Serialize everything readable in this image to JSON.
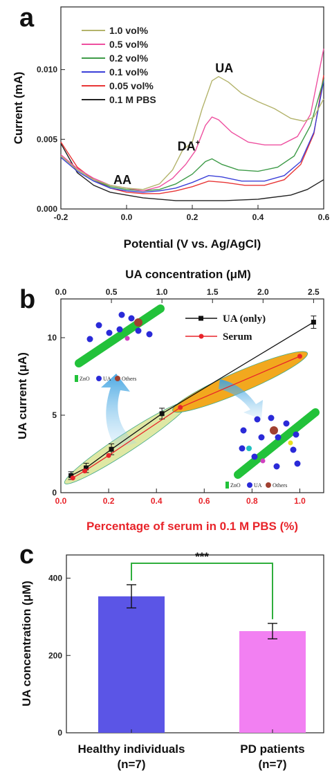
{
  "chart_data": [
    {
      "panel": "a",
      "type": "line",
      "xlabel": "Potential (V vs. Ag/AgCl)",
      "ylabel": "Current (mA)",
      "xlim": [
        -0.2,
        0.6
      ],
      "ylim": [
        0,
        0.0145
      ],
      "xticks": [
        -0.2,
        0.0,
        0.2,
        0.4,
        0.6
      ],
      "xticklabels": [
        "-0.2",
        "0.0",
        "0.2",
        "0.4",
        "0.6"
      ],
      "yticks": [
        0,
        0.005,
        0.01
      ],
      "yticklabels": [
        "0.000",
        "0.005",
        "0.010"
      ],
      "legend_position": "top-left",
      "annotations": [
        {
          "text": "AA",
          "x": -0.04,
          "y": 0.0018
        },
        {
          "text": "DA",
          "sup": "+",
          "x": 0.155,
          "y": 0.0042
        },
        {
          "text": "UA",
          "x": 0.27,
          "y": 0.0098
        }
      ],
      "series": [
        {
          "name": "1.0 vol%",
          "color": "#b3b36b",
          "points": [
            [
              -0.2,
              0.0038
            ],
            [
              -0.15,
              0.0028
            ],
            [
              -0.1,
              0.0021
            ],
            [
              -0.05,
              0.0017
            ],
            [
              0.0,
              0.0015
            ],
            [
              0.05,
              0.0014
            ],
            [
              0.1,
              0.0018
            ],
            [
              0.14,
              0.0028
            ],
            [
              0.17,
              0.0042
            ],
            [
              0.2,
              0.0048
            ],
            [
              0.23,
              0.0072
            ],
            [
              0.26,
              0.0092
            ],
            [
              0.28,
              0.0095
            ],
            [
              0.31,
              0.0091
            ],
            [
              0.35,
              0.0083
            ],
            [
              0.4,
              0.0077
            ],
            [
              0.45,
              0.0072
            ],
            [
              0.5,
              0.0065
            ],
            [
              0.54,
              0.0063
            ],
            [
              0.57,
              0.0066
            ],
            [
              0.6,
              0.0079
            ]
          ]
        },
        {
          "name": "0.5 vol%",
          "color": "#ee4f9f",
          "points": [
            [
              -0.2,
              0.0039
            ],
            [
              -0.15,
              0.0029
            ],
            [
              -0.1,
              0.0022
            ],
            [
              -0.05,
              0.0017
            ],
            [
              0.0,
              0.0015
            ],
            [
              0.05,
              0.0013
            ],
            [
              0.1,
              0.0016
            ],
            [
              0.14,
              0.0022
            ],
            [
              0.18,
              0.0032
            ],
            [
              0.21,
              0.0042
            ],
            [
              0.24,
              0.006
            ],
            [
              0.26,
              0.0066
            ],
            [
              0.28,
              0.0064
            ],
            [
              0.32,
              0.0055
            ],
            [
              0.37,
              0.0048
            ],
            [
              0.42,
              0.0046
            ],
            [
              0.47,
              0.0046
            ],
            [
              0.52,
              0.0052
            ],
            [
              0.56,
              0.0068
            ],
            [
              0.6,
              0.0115
            ]
          ]
        },
        {
          "name": "0.2 vol%",
          "color": "#3e9b48",
          "points": [
            [
              -0.2,
              0.0038
            ],
            [
              -0.15,
              0.0028
            ],
            [
              -0.1,
              0.0021
            ],
            [
              -0.05,
              0.0016
            ],
            [
              0.0,
              0.0014
            ],
            [
              0.05,
              0.0013
            ],
            [
              0.1,
              0.0014
            ],
            [
              0.15,
              0.0018
            ],
            [
              0.2,
              0.0025
            ],
            [
              0.24,
              0.0034
            ],
            [
              0.26,
              0.0036
            ],
            [
              0.29,
              0.0032
            ],
            [
              0.34,
              0.0028
            ],
            [
              0.4,
              0.0027
            ],
            [
              0.46,
              0.003
            ],
            [
              0.51,
              0.0038
            ],
            [
              0.56,
              0.006
            ],
            [
              0.6,
              0.0093
            ]
          ]
        },
        {
          "name": "0.1 vol%",
          "color": "#3a3fd8",
          "points": [
            [
              -0.2,
              0.0037
            ],
            [
              -0.15,
              0.0027
            ],
            [
              -0.1,
              0.002
            ],
            [
              -0.05,
              0.0015
            ],
            [
              0.0,
              0.0013
            ],
            [
              0.05,
              0.0012
            ],
            [
              0.1,
              0.0013
            ],
            [
              0.15,
              0.0015
            ],
            [
              0.2,
              0.0019
            ],
            [
              0.25,
              0.0024
            ],
            [
              0.29,
              0.0023
            ],
            [
              0.35,
              0.002
            ],
            [
              0.42,
              0.002
            ],
            [
              0.48,
              0.0024
            ],
            [
              0.53,
              0.0034
            ],
            [
              0.57,
              0.0055
            ],
            [
              0.6,
              0.0092
            ]
          ]
        },
        {
          "name": "0.05 vol%",
          "color": "#e83535",
          "points": [
            [
              -0.2,
              0.0048
            ],
            [
              -0.15,
              0.003
            ],
            [
              -0.1,
              0.0021
            ],
            [
              -0.05,
              0.0015
            ],
            [
              0.0,
              0.0012
            ],
            [
              0.05,
              0.0011
            ],
            [
              0.1,
              0.0011
            ],
            [
              0.15,
              0.0013
            ],
            [
              0.2,
              0.0016
            ],
            [
              0.25,
              0.002
            ],
            [
              0.3,
              0.0019
            ],
            [
              0.36,
              0.0017
            ],
            [
              0.42,
              0.0017
            ],
            [
              0.48,
              0.0021
            ],
            [
              0.53,
              0.0032
            ],
            [
              0.57,
              0.0054
            ],
            [
              0.6,
              0.0096
            ]
          ]
        },
        {
          "name": "0.1 M PBS",
          "color": "#222222",
          "points": [
            [
              -0.2,
              0.0047
            ],
            [
              -0.15,
              0.0026
            ],
            [
              -0.1,
              0.0017
            ],
            [
              -0.05,
              0.0012
            ],
            [
              0.0,
              0.001
            ],
            [
              0.05,
              0.0008
            ],
            [
              0.1,
              0.0007
            ],
            [
              0.15,
              0.0006
            ],
            [
              0.2,
              0.0006
            ],
            [
              0.3,
              0.0006
            ],
            [
              0.4,
              0.0007
            ],
            [
              0.5,
              0.001
            ],
            [
              0.55,
              0.0014
            ],
            [
              0.6,
              0.0021
            ]
          ]
        }
      ]
    },
    {
      "panel": "b",
      "type": "line",
      "xlabel": "Percentage of serum in 0.1 M PBS (%)",
      "x2label": "UA concentration (μM)",
      "ylabel": "UA current (μA)",
      "xlim": [
        0,
        1.1
      ],
      "x2lim": [
        0,
        2.6
      ],
      "ylim": [
        0,
        12.5
      ],
      "xticks": [
        0,
        0.2,
        0.4,
        0.6,
        0.8,
        1.0
      ],
      "xticklabels": [
        "0.0",
        "0.2",
        "0.4",
        "0.6",
        "0.8",
        "1.0"
      ],
      "x2ticks": [
        0,
        0.5,
        1.0,
        1.5,
        2.0,
        2.5
      ],
      "x2ticklabels": [
        "0.0",
        "0.5",
        "1.0",
        "1.5",
        "2.0",
        "2.5"
      ],
      "yticks": [
        0,
        5,
        10
      ],
      "yticklabels": [
        "0",
        "5",
        "10"
      ],
      "legend_position": "top-right",
      "series": [
        {
          "name": "UA (only)",
          "color": "#111111",
          "marker": "square",
          "axis": "top",
          "x": [
            0.1,
            0.25,
            0.5,
            1.0,
            2.5
          ],
          "y": [
            1.1,
            1.6,
            2.8,
            5.1,
            11.0
          ],
          "err": [
            0.25,
            0.3,
            0.35,
            0.35,
            0.4
          ]
        },
        {
          "name": "Serum",
          "color": "#e8242a",
          "marker": "circle",
          "axis": "bottom",
          "x": [
            0.05,
            0.1,
            0.2,
            0.5,
            1.0
          ],
          "y": [
            0.95,
            1.4,
            2.4,
            5.5,
            8.8
          ],
          "err": [
            0,
            0,
            0,
            0,
            0
          ]
        }
      ],
      "insets": [
        {
          "legend": [
            "ZnO",
            "UA",
            "Others"
          ]
        },
        {
          "legend": [
            "ZnO",
            "UA",
            "Others"
          ]
        }
      ]
    },
    {
      "panel": "c",
      "type": "bar",
      "ylabel": "UA concentration (μM)",
      "ylim": [
        0,
        460
      ],
      "yticks": [
        0,
        200,
        400
      ],
      "yticklabels": [
        "0",
        "200",
        "400"
      ],
      "categories": [
        {
          "line1": "Healthy individuals",
          "line2": "(n=7)"
        },
        {
          "line1": "PD patients",
          "line2": "(n=7)"
        }
      ],
      "values": [
        353,
        263
      ],
      "errors": [
        30,
        20
      ],
      "colors": [
        "#5b55e6",
        "#f280f2"
      ],
      "significance": "***"
    }
  ],
  "colors": {
    "zno": "#22c23a",
    "ua_dot": "#2a2ad8",
    "others_dot": "#a04030",
    "ellipse_left": "#dfe8a4",
    "ellipse_right": "#f2a81e",
    "bracket": "#2fae3c"
  }
}
